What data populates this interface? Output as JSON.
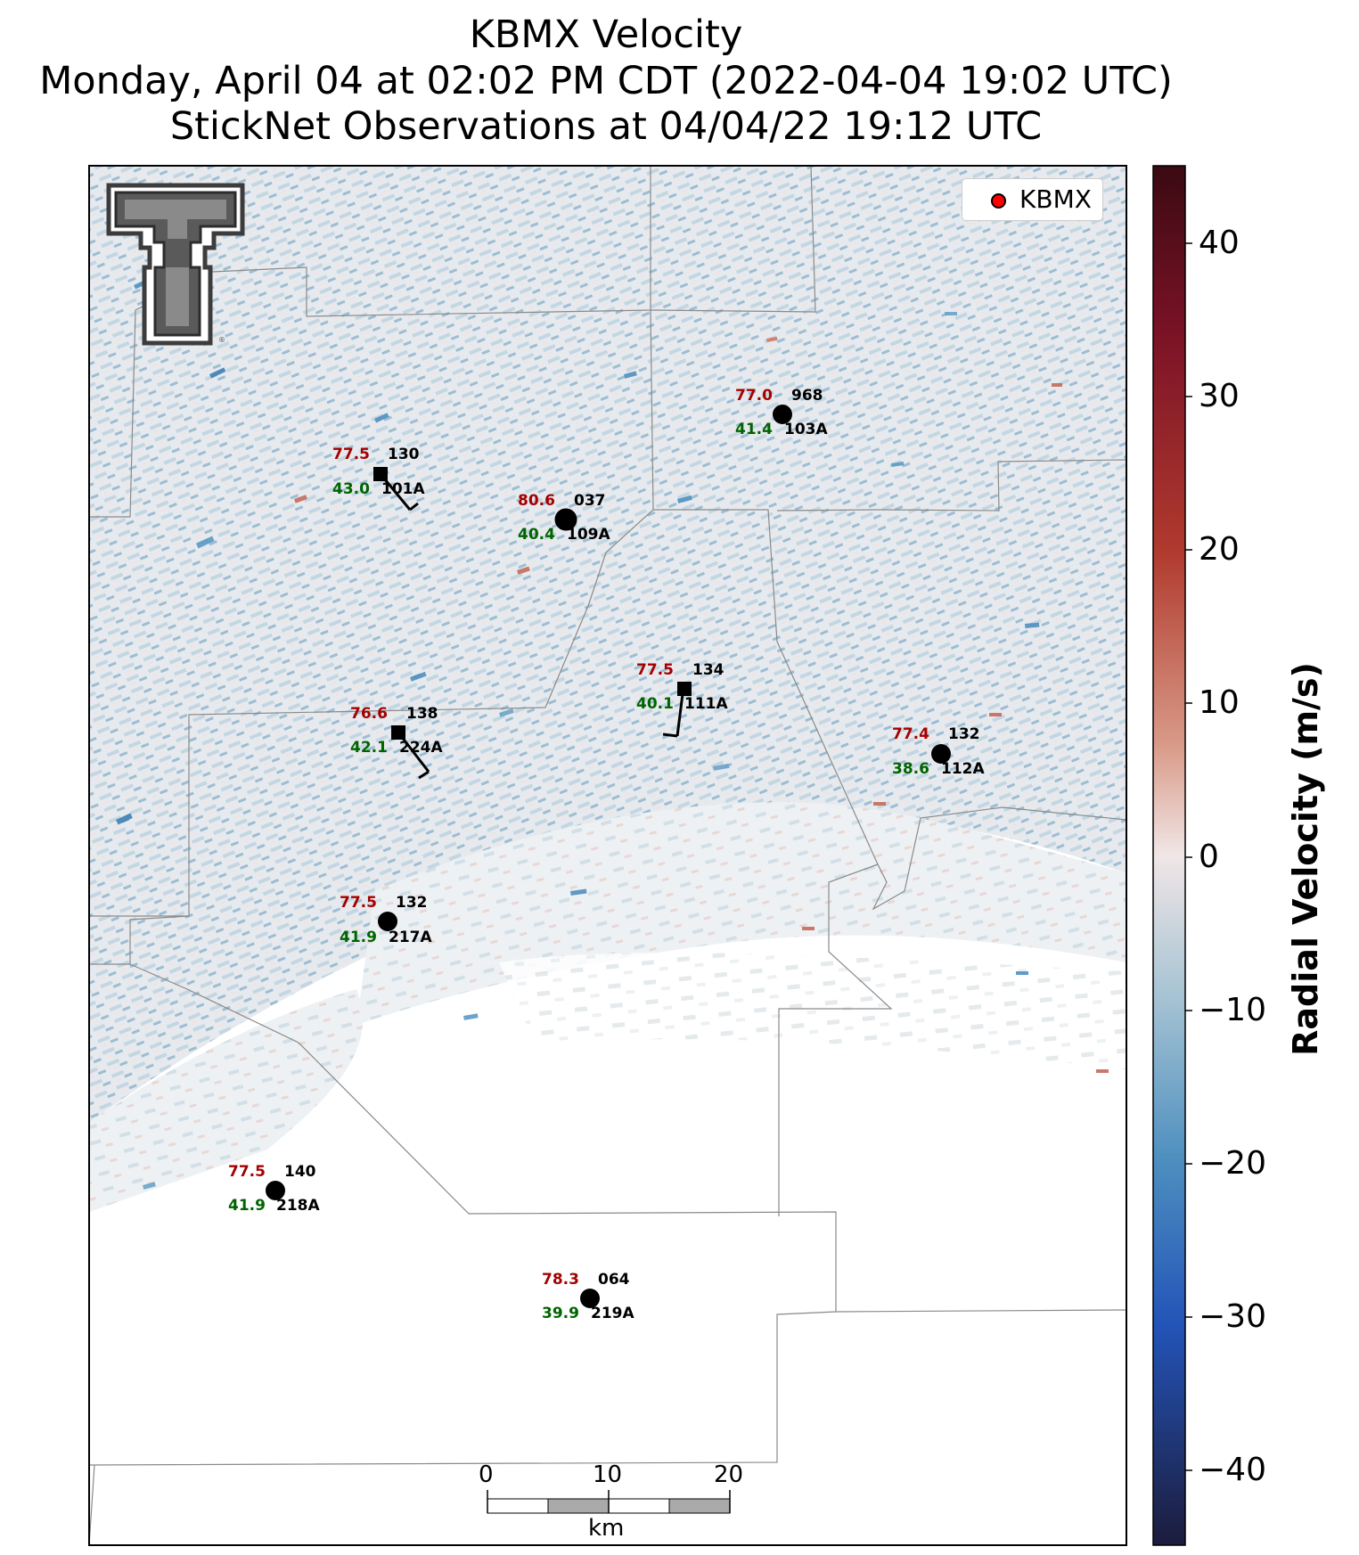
{
  "title": {
    "line1": "KBMX Velocity",
    "line2": "Monday, April 04 at 02:02 PM CDT (2022-04-04 19:02 UTC)",
    "line3": "StickNet Observations at 04/04/22 19:12 UTC"
  },
  "legend": {
    "label": "KBMX"
  },
  "colorbar": {
    "label": "Radial Velocity (m/s)",
    "ticks": [
      "40",
      "30",
      "20",
      "10",
      "0",
      "−10",
      "−20",
      "−30",
      "−40"
    ],
    "colors": {
      "max": "#3a0a12",
      "pos": "#b03a2e",
      "neutral": "#f0e6e6",
      "neg": "#4e8fbf",
      "min": "#1c1c3c"
    }
  },
  "stations": [
    {
      "id": "101A",
      "temp": "77.5",
      "dew": "43.0",
      "pres": "130",
      "marker": "square"
    },
    {
      "id": "109A",
      "temp": "80.6",
      "dew": "40.4",
      "pres": "037",
      "marker": "circle"
    },
    {
      "id": "103A",
      "temp": "77.0",
      "dew": "41.4",
      "pres": "968",
      "marker": "circle"
    },
    {
      "id": "111A",
      "temp": "77.5",
      "dew": "40.1",
      "pres": "134",
      "marker": "square"
    },
    {
      "id": "224A",
      "temp": "76.6",
      "dew": "42.1",
      "pres": "138",
      "marker": "square"
    },
    {
      "id": "112A",
      "temp": "77.4",
      "dew": "38.6",
      "pres": "132",
      "marker": "circle"
    },
    {
      "id": "217A",
      "temp": "77.5",
      "dew": "41.9",
      "pres": "132",
      "marker": "circle"
    },
    {
      "id": "218A",
      "temp": "77.5",
      "dew": "41.9",
      "pres": "140",
      "marker": "circle"
    },
    {
      "id": "219A",
      "temp": "78.3",
      "dew": "39.9",
      "pres": "064",
      "marker": "circle"
    }
  ],
  "scalebar": {
    "ticks": [
      "0",
      "10",
      "20"
    ],
    "unit": "km"
  },
  "logo": {
    "text": "T"
  }
}
